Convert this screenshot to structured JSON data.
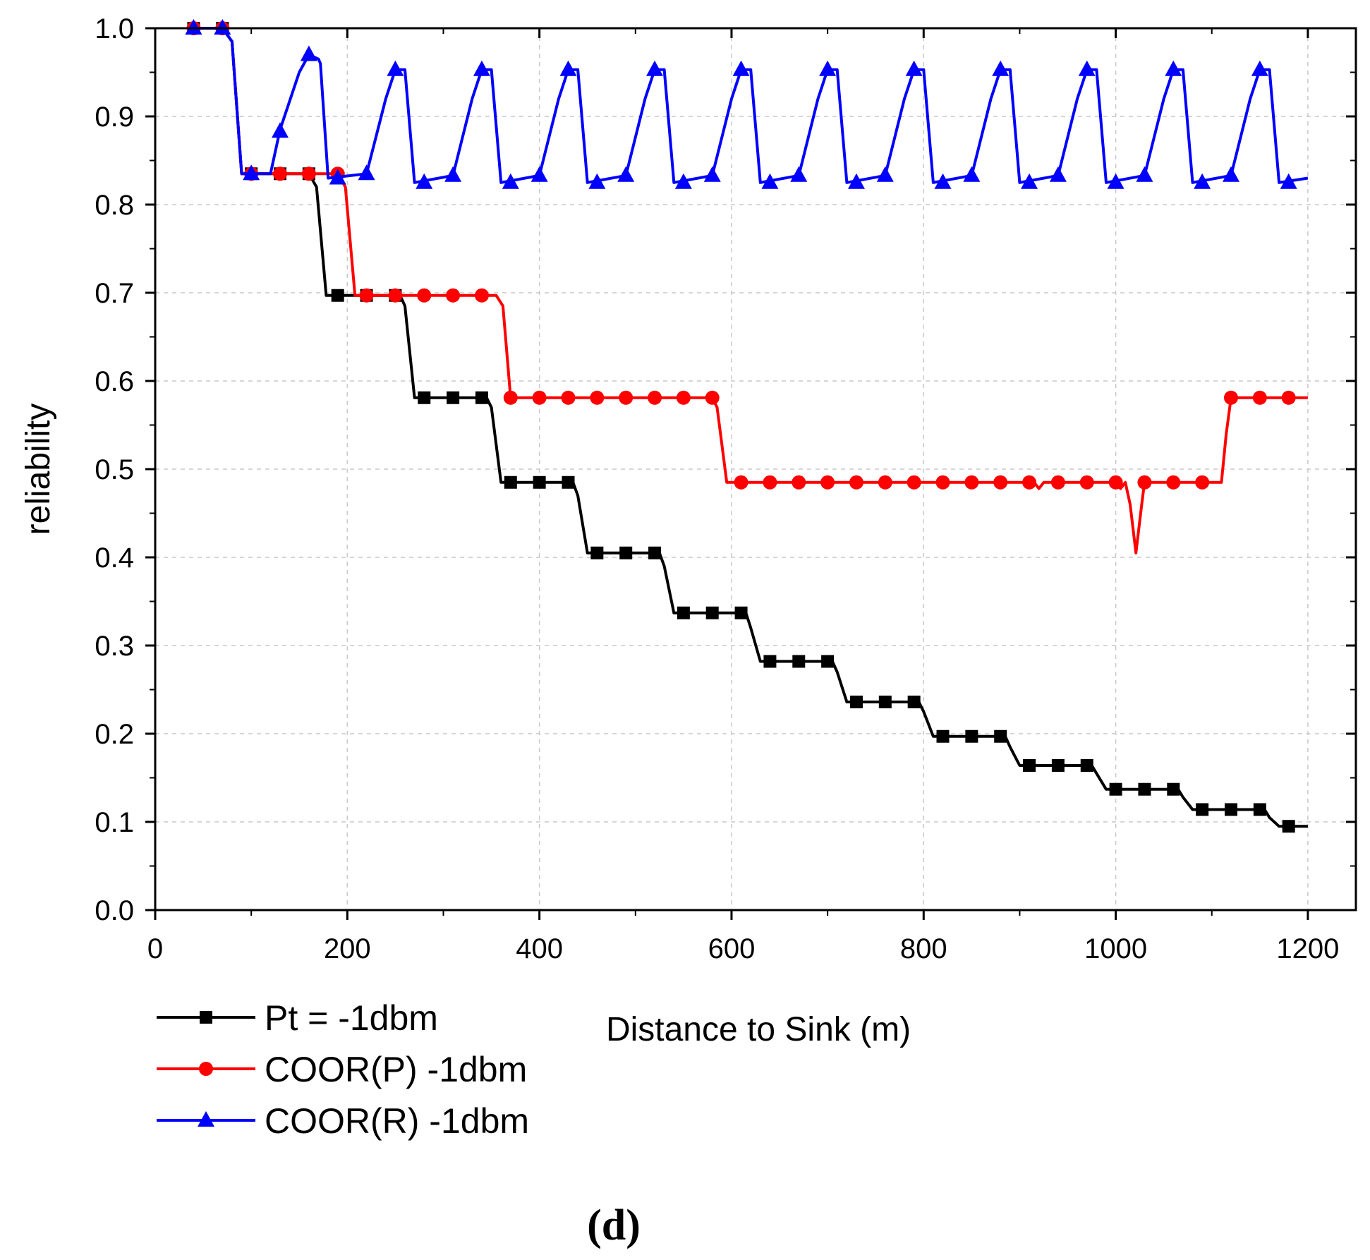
{
  "chart_data": {
    "type": "line",
    "title": "",
    "xlabel": "Distance to Sink (m)",
    "ylabel": "reliability",
    "xlim": [
      0,
      1250
    ],
    "ylim": [
      0,
      1.0
    ],
    "x_ticks": [
      0,
      200,
      400,
      600,
      800,
      1000,
      1200
    ],
    "y_ticks": [
      0.0,
      0.1,
      0.2,
      0.3,
      0.4,
      0.5,
      0.6,
      0.7,
      0.8,
      0.9,
      1.0
    ],
    "x_tick_labels": [
      "0",
      "200",
      "400",
      "600",
      "800",
      "1000",
      "1200"
    ],
    "y_tick_labels": [
      "0.0",
      "0.1",
      "0.2",
      "0.3",
      "0.4",
      "0.5",
      "0.6",
      "0.7",
      "0.8",
      "0.9",
      "1.0"
    ],
    "grid": true,
    "legend_position": "bottom-left below axes",
    "caption": "(d)",
    "series": [
      {
        "name": "Pt = -1dbm",
        "color": "#000000",
        "marker": "square",
        "line": [
          [
            40,
            1.0
          ],
          [
            70,
            1.0
          ],
          [
            80,
            0.985
          ],
          [
            90,
            0.835
          ],
          [
            160,
            0.835
          ],
          [
            168,
            0.82
          ],
          [
            178,
            0.697
          ],
          [
            255,
            0.697
          ],
          [
            260,
            0.685
          ],
          [
            270,
            0.581
          ],
          [
            345,
            0.581
          ],
          [
            350,
            0.57
          ],
          [
            360,
            0.485
          ],
          [
            435,
            0.485
          ],
          [
            440,
            0.47
          ],
          [
            450,
            0.405
          ],
          [
            525,
            0.405
          ],
          [
            530,
            0.39
          ],
          [
            540,
            0.337
          ],
          [
            615,
            0.337
          ],
          [
            620,
            0.32
          ],
          [
            630,
            0.282
          ],
          [
            705,
            0.282
          ],
          [
            710,
            0.27
          ],
          [
            720,
            0.236
          ],
          [
            795,
            0.236
          ],
          [
            800,
            0.225
          ],
          [
            810,
            0.197
          ],
          [
            885,
            0.197
          ],
          [
            890,
            0.185
          ],
          [
            900,
            0.164
          ],
          [
            975,
            0.164
          ],
          [
            980,
            0.155
          ],
          [
            990,
            0.137
          ],
          [
            1065,
            0.137
          ],
          [
            1070,
            0.128
          ],
          [
            1080,
            0.114
          ],
          [
            1155,
            0.114
          ],
          [
            1160,
            0.105
          ],
          [
            1170,
            0.095
          ],
          [
            1200,
            0.095
          ]
        ],
        "markers": [
          [
            40,
            1.0
          ],
          [
            70,
            1.0
          ],
          [
            100,
            0.835
          ],
          [
            130,
            0.835
          ],
          [
            160,
            0.835
          ],
          [
            190,
            0.697
          ],
          [
            220,
            0.697
          ],
          [
            250,
            0.697
          ],
          [
            280,
            0.581
          ],
          [
            310,
            0.581
          ],
          [
            340,
            0.581
          ],
          [
            370,
            0.485
          ],
          [
            400,
            0.485
          ],
          [
            430,
            0.485
          ],
          [
            460,
            0.405
          ],
          [
            490,
            0.405
          ],
          [
            520,
            0.405
          ],
          [
            550,
            0.337
          ],
          [
            580,
            0.337
          ],
          [
            610,
            0.337
          ],
          [
            640,
            0.282
          ],
          [
            670,
            0.282
          ],
          [
            700,
            0.282
          ],
          [
            730,
            0.236
          ],
          [
            760,
            0.236
          ],
          [
            790,
            0.236
          ],
          [
            820,
            0.197
          ],
          [
            850,
            0.197
          ],
          [
            880,
            0.197
          ],
          [
            910,
            0.164
          ],
          [
            940,
            0.164
          ],
          [
            970,
            0.164
          ],
          [
            1000,
            0.137
          ],
          [
            1030,
            0.137
          ],
          [
            1060,
            0.137
          ],
          [
            1090,
            0.114
          ],
          [
            1120,
            0.114
          ],
          [
            1150,
            0.114
          ],
          [
            1180,
            0.095
          ]
        ]
      },
      {
        "name": "COOR(P) -1dbm",
        "color": "#ff0000",
        "marker": "circle",
        "line": [
          [
            40,
            1.0
          ],
          [
            70,
            1.0
          ],
          [
            80,
            0.985
          ],
          [
            90,
            0.835
          ],
          [
            190,
            0.835
          ],
          [
            198,
            0.82
          ],
          [
            208,
            0.697
          ],
          [
            355,
            0.697
          ],
          [
            362,
            0.685
          ],
          [
            370,
            0.581
          ],
          [
            580,
            0.581
          ],
          [
            585,
            0.57
          ],
          [
            595,
            0.485
          ],
          [
            915,
            0.485
          ],
          [
            920,
            0.478
          ],
          [
            925,
            0.485
          ],
          [
            1000,
            0.485
          ],
          [
            1005,
            0.478
          ],
          [
            1010,
            0.485
          ],
          [
            1015,
            0.46
          ],
          [
            1021,
            0.405
          ],
          [
            1027,
            0.46
          ],
          [
            1030,
            0.485
          ],
          [
            1110,
            0.485
          ],
          [
            1115,
            0.54
          ],
          [
            1120,
            0.581
          ],
          [
            1200,
            0.581
          ]
        ],
        "markers": [
          [
            40,
            1.0
          ],
          [
            70,
            1.0
          ],
          [
            100,
            0.835
          ],
          [
            130,
            0.835
          ],
          [
            160,
            0.835
          ],
          [
            190,
            0.835
          ],
          [
            220,
            0.697
          ],
          [
            250,
            0.697
          ],
          [
            280,
            0.697
          ],
          [
            310,
            0.697
          ],
          [
            340,
            0.697
          ],
          [
            370,
            0.581
          ],
          [
            400,
            0.581
          ],
          [
            430,
            0.581
          ],
          [
            460,
            0.581
          ],
          [
            490,
            0.581
          ],
          [
            520,
            0.581
          ],
          [
            550,
            0.581
          ],
          [
            580,
            0.581
          ],
          [
            610,
            0.485
          ],
          [
            640,
            0.485
          ],
          [
            670,
            0.485
          ],
          [
            700,
            0.485
          ],
          [
            730,
            0.485
          ],
          [
            760,
            0.485
          ],
          [
            790,
            0.485
          ],
          [
            820,
            0.485
          ],
          [
            850,
            0.485
          ],
          [
            880,
            0.485
          ],
          [
            910,
            0.485
          ],
          [
            940,
            0.485
          ],
          [
            970,
            0.485
          ],
          [
            1000,
            0.485
          ],
          [
            1030,
            0.485
          ],
          [
            1060,
            0.485
          ],
          [
            1090,
            0.485
          ],
          [
            1120,
            0.581
          ],
          [
            1150,
            0.581
          ],
          [
            1180,
            0.581
          ]
        ]
      },
      {
        "name": "COOR(R) -1dbm",
        "color": "#0000ff",
        "marker": "triangle",
        "line": [
          [
            40,
            1.0
          ],
          [
            70,
            1.0
          ],
          [
            80,
            0.985
          ],
          [
            90,
            0.835
          ],
          [
            120,
            0.835
          ],
          [
            130,
            0.885
          ],
          [
            150,
            0.95
          ],
          [
            160,
            0.97
          ],
          [
            170,
            0.965
          ],
          [
            172,
            0.96
          ],
          [
            180,
            0.83
          ],
          [
            220,
            0.835
          ],
          [
            240,
            0.92
          ],
          [
            250,
            0.953
          ],
          [
            260,
            0.953
          ],
          [
            270,
            0.825
          ],
          [
            310,
            0.833
          ],
          [
            330,
            0.92
          ],
          [
            340,
            0.953
          ],
          [
            350,
            0.953
          ],
          [
            360,
            0.825
          ],
          [
            400,
            0.833
          ],
          [
            420,
            0.92
          ],
          [
            430,
            0.953
          ],
          [
            440,
            0.953
          ],
          [
            450,
            0.825
          ],
          [
            490,
            0.833
          ],
          [
            510,
            0.92
          ],
          [
            520,
            0.953
          ],
          [
            530,
            0.953
          ],
          [
            540,
            0.825
          ],
          [
            580,
            0.833
          ],
          [
            600,
            0.92
          ],
          [
            610,
            0.953
          ],
          [
            620,
            0.953
          ],
          [
            630,
            0.825
          ],
          [
            670,
            0.833
          ],
          [
            690,
            0.92
          ],
          [
            700,
            0.953
          ],
          [
            710,
            0.953
          ],
          [
            720,
            0.825
          ],
          [
            760,
            0.833
          ],
          [
            780,
            0.92
          ],
          [
            790,
            0.953
          ],
          [
            800,
            0.953
          ],
          [
            810,
            0.825
          ],
          [
            850,
            0.833
          ],
          [
            870,
            0.92
          ],
          [
            880,
            0.953
          ],
          [
            890,
            0.953
          ],
          [
            900,
            0.825
          ],
          [
            940,
            0.833
          ],
          [
            960,
            0.92
          ],
          [
            970,
            0.953
          ],
          [
            980,
            0.953
          ],
          [
            990,
            0.825
          ],
          [
            1030,
            0.833
          ],
          [
            1050,
            0.92
          ],
          [
            1060,
            0.953
          ],
          [
            1070,
            0.953
          ],
          [
            1080,
            0.825
          ],
          [
            1120,
            0.833
          ],
          [
            1140,
            0.92
          ],
          [
            1150,
            0.953
          ],
          [
            1160,
            0.953
          ],
          [
            1170,
            0.825
          ],
          [
            1200,
            0.83
          ]
        ],
        "markers": [
          [
            40,
            1.0
          ],
          [
            70,
            1.0
          ],
          [
            100,
            0.835
          ],
          [
            130,
            0.883
          ],
          [
            160,
            0.97
          ],
          [
            190,
            0.83
          ],
          [
            220,
            0.835
          ],
          [
            250,
            0.953
          ],
          [
            280,
            0.825
          ],
          [
            310,
            0.833
          ],
          [
            340,
            0.953
          ],
          [
            370,
            0.825
          ],
          [
            400,
            0.833
          ],
          [
            430,
            0.953
          ],
          [
            460,
            0.825
          ],
          [
            490,
            0.833
          ],
          [
            520,
            0.953
          ],
          [
            550,
            0.825
          ],
          [
            580,
            0.833
          ],
          [
            610,
            0.953
          ],
          [
            640,
            0.825
          ],
          [
            670,
            0.833
          ],
          [
            700,
            0.953
          ],
          [
            730,
            0.825
          ],
          [
            760,
            0.833
          ],
          [
            790,
            0.953
          ],
          [
            820,
            0.825
          ],
          [
            850,
            0.833
          ],
          [
            880,
            0.953
          ],
          [
            910,
            0.825
          ],
          [
            940,
            0.833
          ],
          [
            970,
            0.953
          ],
          [
            1000,
            0.825
          ],
          [
            1030,
            0.833
          ],
          [
            1060,
            0.953
          ],
          [
            1090,
            0.825
          ],
          [
            1120,
            0.833
          ],
          [
            1150,
            0.953
          ],
          [
            1180,
            0.825
          ]
        ]
      }
    ]
  }
}
